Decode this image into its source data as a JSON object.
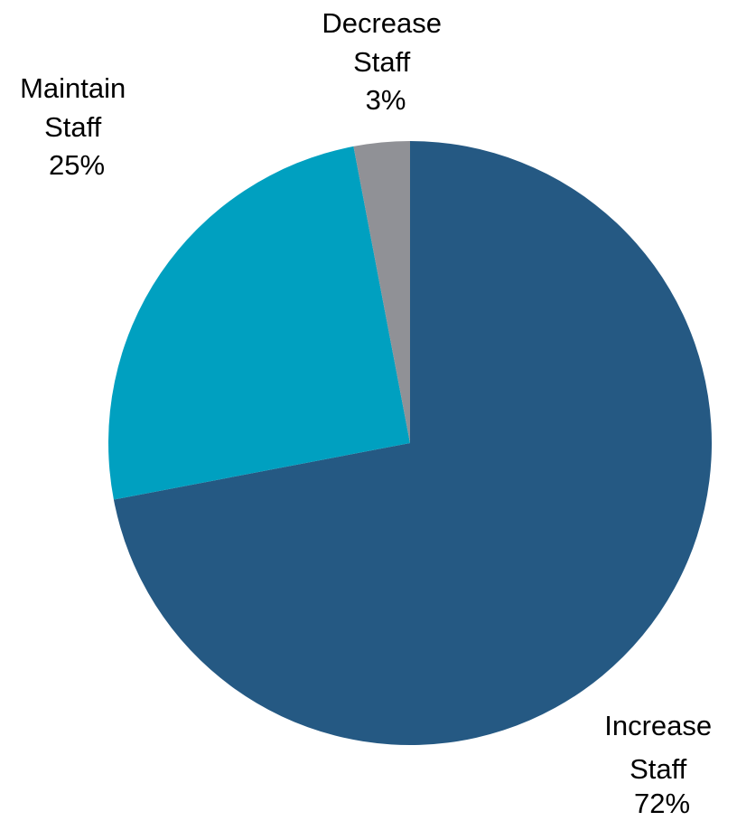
{
  "chart_data": {
    "type": "pie",
    "start_angle": "12 o'clock",
    "direction": "clockwise",
    "slices": [
      {
        "label": [
          "Increase",
          "Staff"
        ],
        "value": 72,
        "value_label": "72%",
        "color": "#255983"
      },
      {
        "label": [
          "Maintain",
          "Staff"
        ],
        "value": 25,
        "value_label": "25%",
        "color": "#00A0C0"
      },
      {
        "label": [
          "Decrease",
          "Staff"
        ],
        "value": 3,
        "value_label": "3%",
        "color": "#909196"
      }
    ]
  }
}
